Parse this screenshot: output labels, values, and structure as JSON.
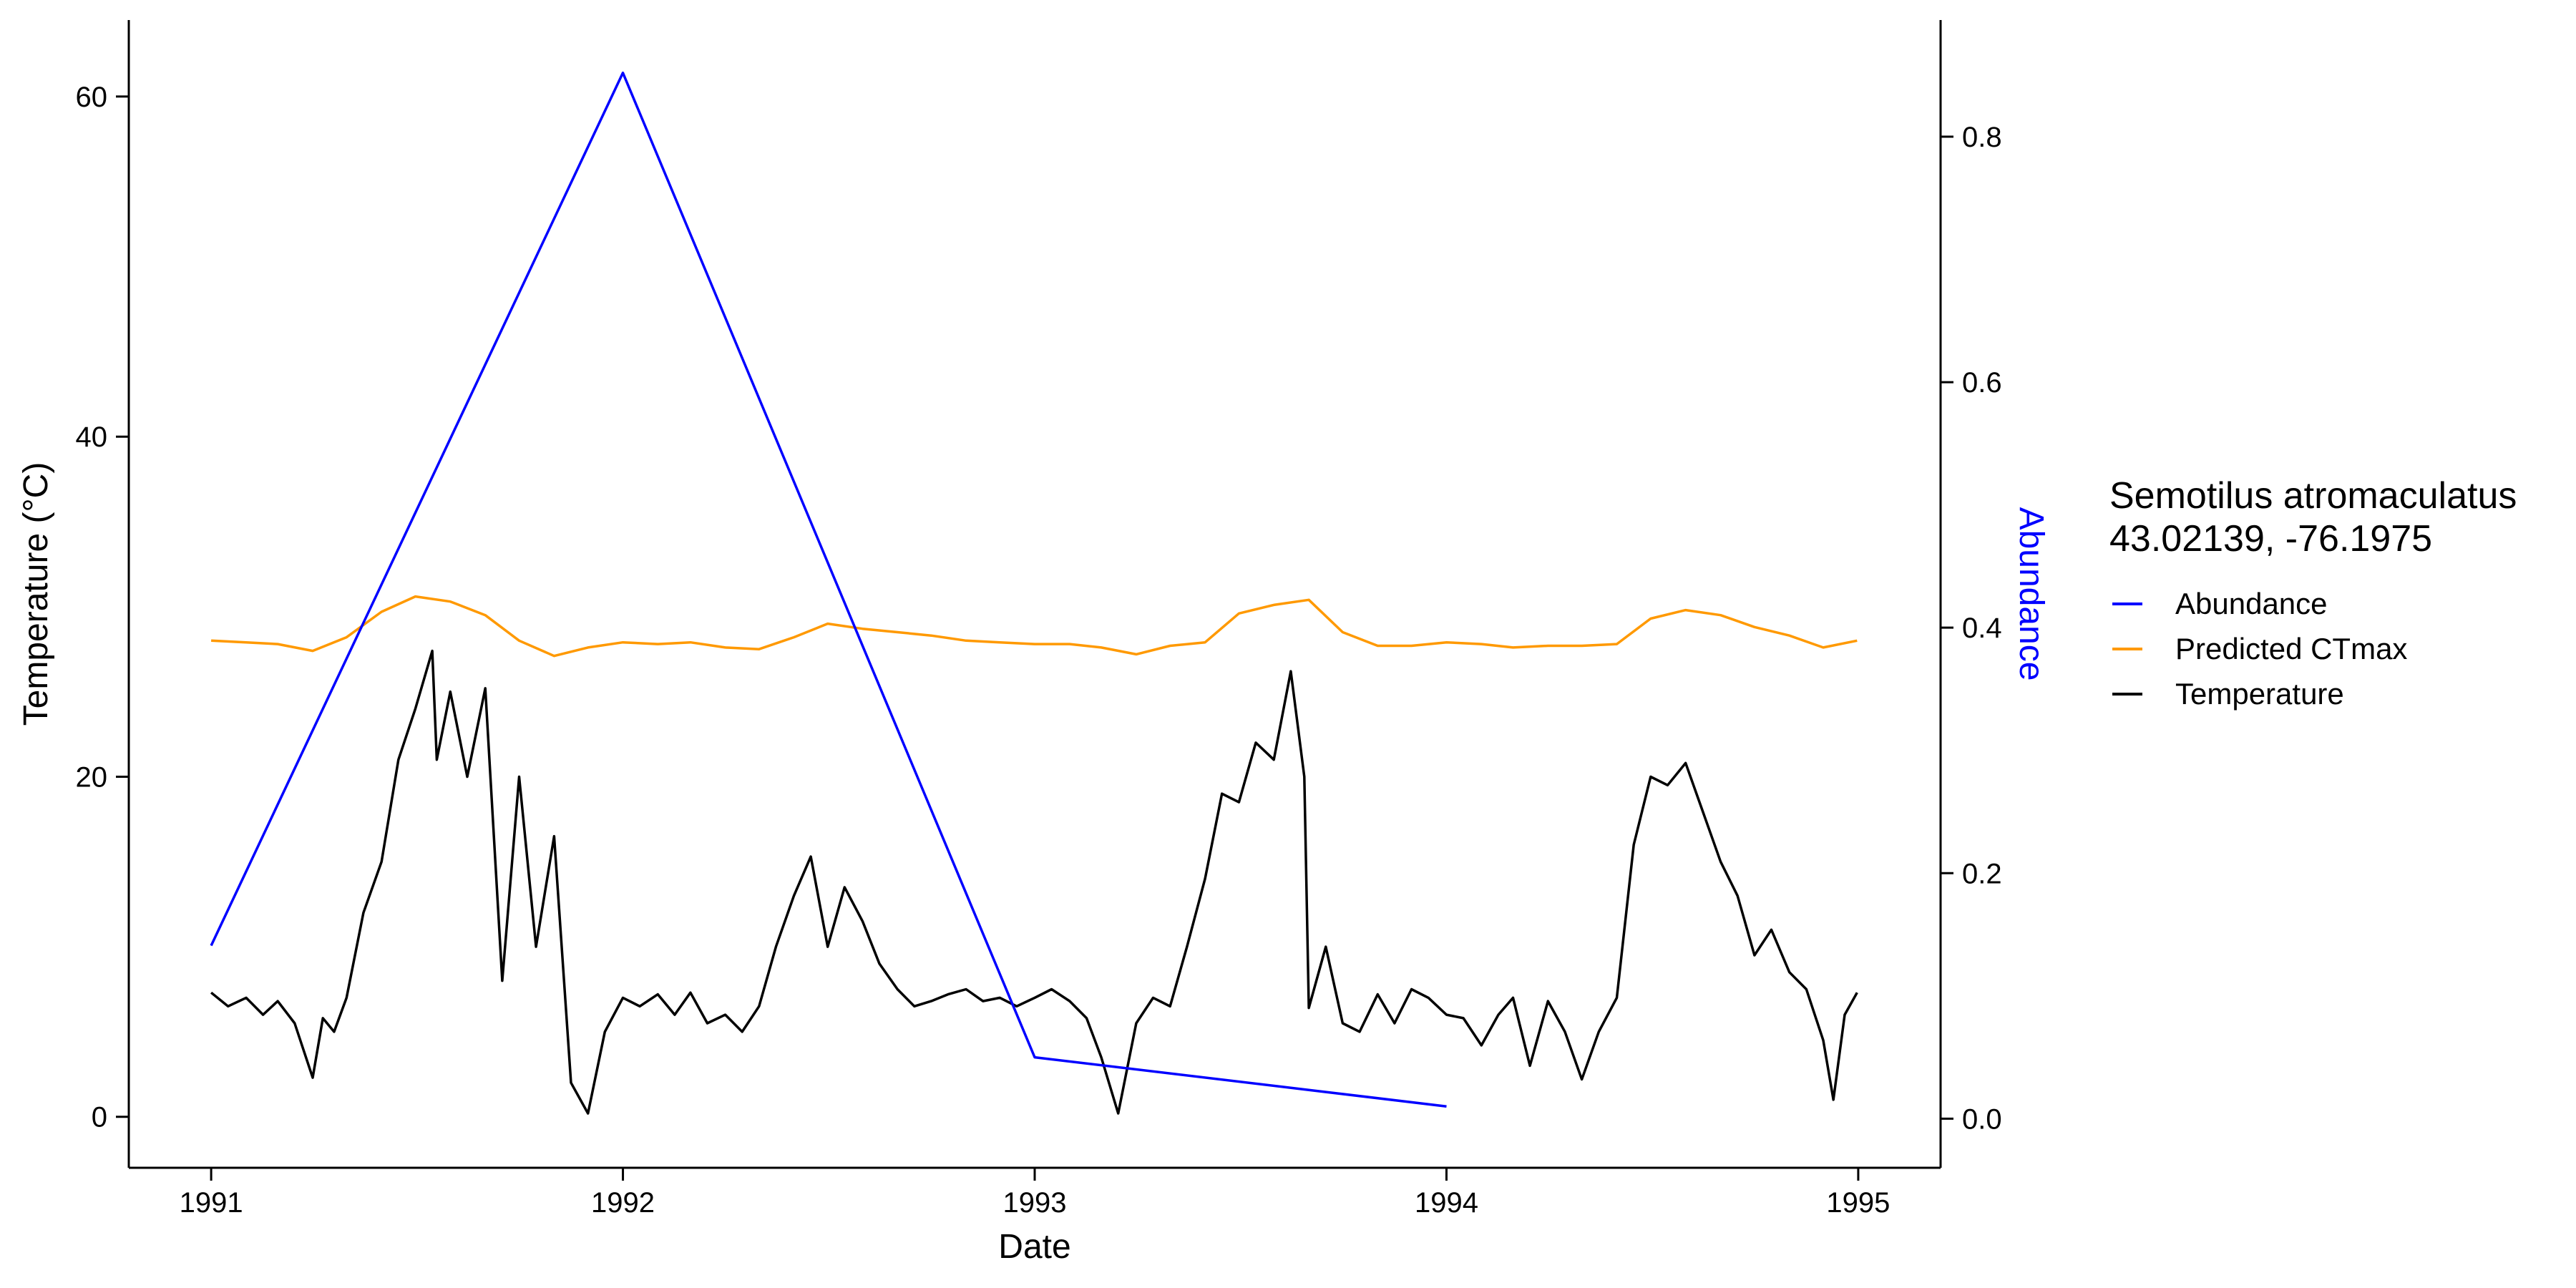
{
  "chart_data": {
    "type": "line",
    "xlabel": "Date",
    "ylabel_left": "Temperature (°C)",
    "ylabel_right": "Abundance",
    "xlim": [
      1990.8,
      1995.2
    ],
    "ylim_left": [
      -3,
      64.5
    ],
    "ylim_right": [
      -0.04,
      0.895
    ],
    "x_ticks": [
      1991,
      1992,
      1993,
      1994,
      1995
    ],
    "y_ticks_left": [
      0,
      20,
      40,
      60
    ],
    "y_ticks_right": [
      "0.0",
      "0.2",
      "0.4",
      "0.6",
      "0.8"
    ],
    "grid": false,
    "legend": {
      "position": "right",
      "title_line1": "Semotilus atromaculatus",
      "title_line2": "43.02139, -76.1975",
      "entries": [
        "Abundance",
        "Predicted CTmax",
        "Temperature"
      ]
    },
    "colors": {
      "abundance": "#0000ff",
      "ctmax": "#ff9900",
      "temperature": "#000000"
    },
    "series": [
      {
        "name": "Abundance",
        "axis": "right",
        "x": [
          "1991-01-01",
          "1992-01-01",
          "1993-01-01",
          "1994-01-01"
        ],
        "y": [
          0.141,
          0.852,
          0.05,
          0.01
        ]
      },
      {
        "name": "Predicted CTmax",
        "axis": "left",
        "x": [
          "1991-01-01",
          "1991-02-01",
          "1991-03-01",
          "1991-04-01",
          "1991-05-01",
          "1991-06-01",
          "1991-07-01",
          "1991-08-01",
          "1991-09-01",
          "1991-10-01",
          "1991-11-01",
          "1991-12-01",
          "1992-01-01",
          "1992-02-01",
          "1992-03-01",
          "1992-04-01",
          "1992-05-01",
          "1992-06-01",
          "1992-07-01",
          "1992-08-01",
          "1992-09-01",
          "1992-10-01",
          "1992-11-01",
          "1992-12-01",
          "1993-01-01",
          "1993-02-01",
          "1993-03-01",
          "1993-04-01",
          "1993-05-01",
          "1993-06-01",
          "1993-07-01",
          "1993-08-01",
          "1993-09-01",
          "1993-10-01",
          "1993-11-01",
          "1993-12-01",
          "1994-01-01",
          "1994-02-01",
          "1994-03-01",
          "1994-04-01",
          "1994-05-01",
          "1994-06-01",
          "1994-07-01",
          "1994-08-01",
          "1994-09-01",
          "1994-10-01",
          "1994-11-01",
          "1994-12-01",
          "1994-12-31"
        ],
        "y": [
          28,
          27.9,
          27.8,
          27.4,
          28.2,
          29.7,
          30.6,
          30.3,
          29.5,
          28.0,
          27.1,
          27.6,
          27.9,
          27.8,
          27.9,
          27.6,
          27.5,
          28.2,
          29.0,
          28.7,
          28.5,
          28.3,
          28.0,
          27.9,
          27.8,
          27.8,
          27.6,
          27.2,
          27.7,
          27.9,
          29.6,
          30.1,
          30.4,
          28.5,
          27.7,
          27.7,
          27.9,
          27.8,
          27.6,
          27.7,
          27.7,
          27.8,
          29.3,
          29.8,
          29.5,
          28.8,
          28.3,
          27.6,
          28.0
        ]
      },
      {
        "name": "Temperature",
        "axis": "left",
        "x": [
          "1991-01-01",
          "1991-01-16",
          "1991-02-01",
          "1991-02-16",
          "1991-03-01",
          "1991-03-16",
          "1991-04-01",
          "1991-04-10",
          "1991-04-20",
          "1991-05-01",
          "1991-05-16",
          "1991-06-01",
          "1991-06-16",
          "1991-07-01",
          "1991-07-16",
          "1991-07-20",
          "1991-08-01",
          "1991-08-16",
          "1991-09-01",
          "1991-09-16",
          "1991-10-01",
          "1991-10-16",
          "1991-11-01",
          "1991-11-16",
          "1991-12-01",
          "1991-12-16",
          "1992-01-01",
          "1992-01-16",
          "1992-02-01",
          "1992-02-16",
          "1992-03-01",
          "1992-03-16",
          "1992-04-01",
          "1992-04-16",
          "1992-05-01",
          "1992-05-16",
          "1992-06-01",
          "1992-06-16",
          "1992-07-01",
          "1992-07-16",
          "1992-08-01",
          "1992-08-16",
          "1992-09-01",
          "1992-09-16",
          "1992-10-01",
          "1992-10-16",
          "1992-11-01",
          "1992-11-16",
          "1992-12-01",
          "1992-12-16",
          "1993-01-01",
          "1993-01-16",
          "1993-02-01",
          "1993-02-16",
          "1993-03-01",
          "1993-03-16",
          "1993-04-01",
          "1993-04-16",
          "1993-05-01",
          "1993-05-16",
          "1993-06-01",
          "1993-06-16",
          "1993-07-01",
          "1993-07-16",
          "1993-08-01",
          "1993-08-16",
          "1993-08-28",
          "1993-09-01",
          "1993-09-16",
          "1993-10-01",
          "1993-10-16",
          "1993-11-01",
          "1993-11-16",
          "1993-12-01",
          "1993-12-16",
          "1994-01-01",
          "1994-01-16",
          "1994-02-01",
          "1994-02-16",
          "1994-03-01",
          "1994-03-16",
          "1994-04-01",
          "1994-04-16",
          "1994-05-01",
          "1994-05-16",
          "1994-06-01",
          "1994-06-16",
          "1994-07-01",
          "1994-07-16",
          "1994-08-01",
          "1994-08-16",
          "1994-09-01",
          "1994-09-16",
          "1994-10-01",
          "1994-10-16",
          "1994-11-01",
          "1994-11-16",
          "1994-12-01",
          "1994-12-10",
          "1994-12-20",
          "1994-12-31"
        ],
        "y": [
          7.3,
          6.5,
          7.0,
          6.0,
          6.8,
          5.5,
          2.3,
          5.8,
          5.0,
          7.0,
          12.0,
          15.0,
          21.0,
          24.0,
          27.4,
          21.0,
          25.0,
          20.0,
          25.2,
          8.0,
          20.0,
          10.0,
          16.5,
          2.0,
          0.2,
          5.0,
          7.0,
          6.5,
          7.2,
          6.0,
          7.3,
          5.5,
          6.0,
          5.0,
          6.5,
          10.0,
          13.0,
          15.3,
          10.0,
          13.5,
          11.5,
          9.0,
          7.5,
          6.5,
          6.8,
          7.2,
          7.5,
          6.8,
          7.0,
          6.5,
          7.0,
          7.5,
          6.8,
          5.8,
          3.5,
          0.2,
          5.5,
          7.0,
          6.5,
          10.0,
          14.0,
          19.0,
          18.5,
          22.0,
          21.0,
          26.2,
          20.0,
          6.4,
          10.0,
          5.5,
          5.0,
          7.2,
          5.5,
          7.5,
          7.0,
          6.0,
          5.8,
          4.2,
          6.0,
          7.0,
          3.0,
          6.8,
          5.0,
          2.2,
          5.0,
          7.0,
          16.0,
          20.0,
          19.5,
          20.8,
          18.0,
          15.0,
          13.0,
          9.5,
          11.0,
          8.5,
          7.5,
          4.5,
          1.0,
          6.0,
          7.3
        ]
      }
    ]
  }
}
